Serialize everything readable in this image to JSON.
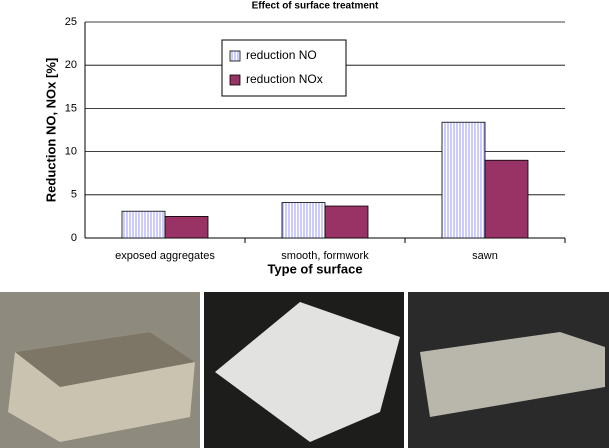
{
  "chart_data": {
    "type": "bar",
    "title": "Effect of surface treatment",
    "x_label": "Type of surface",
    "y_label": "Reduction NO, NOx [%]",
    "categories": [
      "exposed aggregates",
      "smooth, formwork",
      "sawn"
    ],
    "series": [
      {
        "name": "reduction NO",
        "color": "#9999ff",
        "values": [
          3.1,
          4.1,
          13.4
        ]
      },
      {
        "name": "reduction NOx",
        "color": "#993366",
        "values": [
          2.5,
          3.7,
          9.0
        ]
      }
    ],
    "ylim": [
      0,
      25
    ],
    "yticks": [
      0,
      5,
      10,
      15,
      20,
      25
    ],
    "grid": true
  }
}
